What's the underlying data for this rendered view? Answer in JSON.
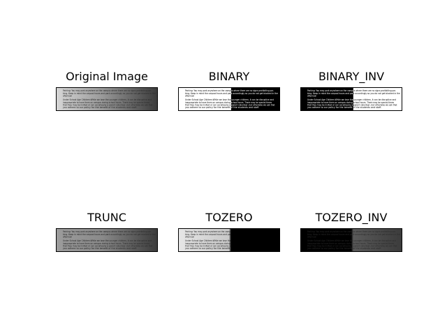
{
  "panels": [
    {
      "id": "original",
      "title": "Original Image",
      "mode": "original"
    },
    {
      "id": "binary",
      "title": "BINARY",
      "mode": "binary"
    },
    {
      "id": "binary_inv",
      "title": "BINARY_INV",
      "mode": "binary_inv"
    },
    {
      "id": "trunc",
      "title": "TRUNC",
      "mode": "trunc"
    },
    {
      "id": "tozero",
      "title": "TOZERO",
      "mode": "tozero"
    },
    {
      "id": "tozero_inv",
      "title": "TOZERO_INV",
      "mode": "tozero_inv"
    }
  ],
  "document_text": [
    "Parking: You may park anywhere on the campus where there are no signs prohibiting par-",
    "king. Keep in mind the carpool hours and park accordingly so you do not get blocked in the",
    "afternoon",
    "",
    "Under School Age Children:While we love the younger children, it can be disruptive and",
    "inappropriate to have them on campus during school hours. There may be special times",
    "that they may be invited or can accompany a parent volunteer, but otherwise we ask that",
    "you adhere to our      policy for the benefit of the students and staff."
  ],
  "colors": {
    "background": "#ffffff",
    "text": "#000000",
    "frame": "#000000"
  }
}
